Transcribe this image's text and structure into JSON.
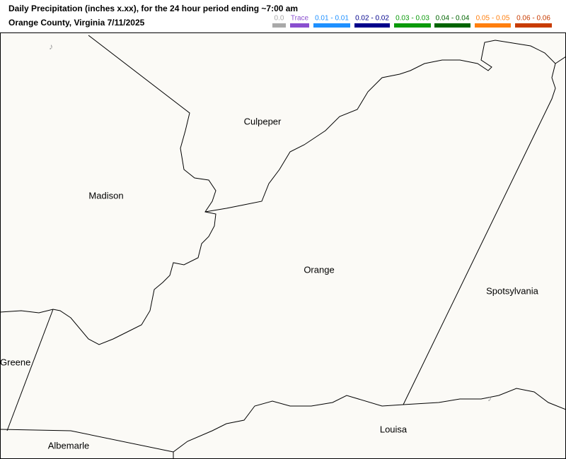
{
  "header": {
    "title": "Daily Precipitation (inches  x.xx),  for the 24 hour period ending ~7:00 am",
    "subtitle": "Orange County, Virginia  7/11/2025"
  },
  "legend": [
    {
      "label": "0.0",
      "color": "#a9a9a9"
    },
    {
      "label": "Trace",
      "color": "#8a4fcf"
    },
    {
      "label": "0.01 - 0.01",
      "color": "#1e90ff"
    },
    {
      "label": "0.02 - 0.02",
      "color": "#00008b"
    },
    {
      "label": "0.03 - 0.03",
      "color": "#0a9a0a"
    },
    {
      "label": "0.04 - 0.04",
      "color": "#006400"
    },
    {
      "label": "0.05 - 0.05",
      "color": "#ff7f0e"
    },
    {
      "label": "0.06 - 0.06",
      "color": "#c83c00"
    }
  ],
  "map": {
    "counties": [
      "Culpeper",
      "Madison",
      "Orange",
      "Spotsylvania",
      "Greene",
      "Louisa",
      "Albemarle"
    ]
  }
}
